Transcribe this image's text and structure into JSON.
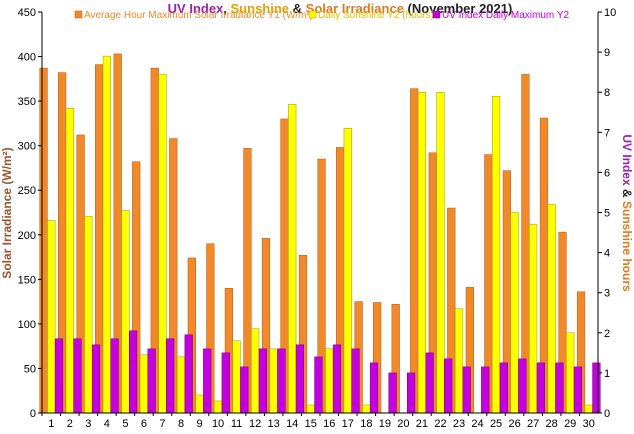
{
  "chart_data": {
    "type": "bar",
    "title_parts": [
      {
        "text": "UV Index",
        "color": "#9b1fb1"
      },
      {
        "text": ", ",
        "color": "#222222"
      },
      {
        "text": "Sunshine",
        "color": "#e8a000"
      },
      {
        "text": " & ",
        "color": "#222222"
      },
      {
        "text": "Solar Irradiance",
        "color": "#e07a1f"
      },
      {
        "text": " (November 2021)",
        "color": "#222222"
      }
    ],
    "ylabel_left": "Solar Irradiance (W/m²)",
    "ylabel_left_color": "#a0522d",
    "ylabel_right_parts": [
      {
        "text": "UV Index",
        "color": "#9b1fb1"
      },
      {
        "text": " & ",
        "color": "#222222"
      },
      {
        "text": "Sunshine hours",
        "color": "#e07a1f"
      }
    ],
    "ylim_left": [
      0,
      450
    ],
    "yticks_left": [
      0,
      50,
      100,
      150,
      200,
      250,
      300,
      350,
      400,
      450
    ],
    "ylim_right": [
      0,
      10
    ],
    "yticks_right": [
      0,
      1,
      2,
      3,
      4,
      5,
      6,
      7,
      8,
      9,
      10
    ],
    "categories": [
      "1",
      "2",
      "3",
      "4",
      "5",
      "6",
      "7",
      "8",
      "9",
      "10",
      "11",
      "12",
      "13",
      "14",
      "15",
      "16",
      "17",
      "18",
      "19",
      "20",
      "21",
      "22",
      "23",
      "24",
      "25",
      "26",
      "27",
      "28",
      "29",
      "30"
    ],
    "series": [
      {
        "name": "Average Hour Maximum Solar Irradiance Y1 (W/m²)",
        "axis": "left",
        "color": "#f0892a",
        "stroke": "#b85a10",
        "values": [
          387,
          382,
          312,
          391,
          403,
          282,
          387,
          308,
          174,
          190,
          140,
          297,
          196,
          330,
          177,
          285,
          298,
          125,
          124,
          122,
          364,
          292,
          230,
          141,
          290,
          272,
          380,
          331,
          203,
          136
        ]
      },
      {
        "name": "Daily Sunshine Y2 (hours)",
        "axis": "right",
        "color": "#ffff00",
        "stroke": "#999900",
        "values": [
          4.8,
          7.6,
          4.9,
          8.9,
          5.05,
          1.45,
          8.45,
          1.4,
          0.45,
          0.3,
          1.8,
          2.1,
          1.6,
          7.7,
          0.2,
          1.6,
          7.1,
          0.2,
          0.0,
          0.0,
          8.0,
          8.0,
          2.6,
          0.0,
          7.9,
          5.0,
          4.7,
          5.2,
          2.0,
          0.2
        ]
      },
      {
        "name": "UV Index Daily Maximum Y2",
        "axis": "right",
        "color": "#c400e0",
        "stroke": "#700080",
        "values": [
          1.85,
          1.85,
          1.7,
          1.85,
          2.05,
          1.6,
          1.85,
          1.95,
          1.6,
          1.5,
          1.15,
          1.6,
          1.6,
          1.7,
          1.4,
          1.7,
          1.6,
          1.25,
          1.0,
          1.0,
          1.5,
          1.35,
          1.15,
          1.15,
          1.25,
          1.35,
          1.25,
          1.25,
          1.15,
          1.25
        ]
      }
    ],
    "grid": false,
    "legend_position": "top"
  }
}
